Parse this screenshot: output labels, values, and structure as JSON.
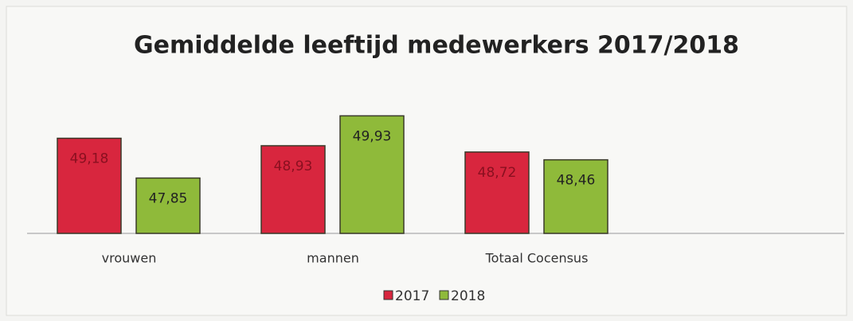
{
  "chart_data": {
    "type": "bar",
    "title": "Gemiddelde leeftijd medewerkers 2017/2018",
    "categories": [
      "vrouwen",
      "mannen",
      "Totaal Cocensus"
    ],
    "series": [
      {
        "name": "2017",
        "color": "#d8263e",
        "values": [
          49.18,
          48.93,
          48.72
        ],
        "value_labels": [
          "49,18",
          "48,93",
          "48,72"
        ]
      },
      {
        "name": "2018",
        "color": "#8fba3a",
        "values": [
          47.85,
          49.93,
          48.46
        ],
        "value_labels": [
          "47,85",
          "49,93",
          "48,46"
        ]
      }
    ],
    "ylim": [
      46,
      50.5
    ],
    "legend": "bottom"
  }
}
